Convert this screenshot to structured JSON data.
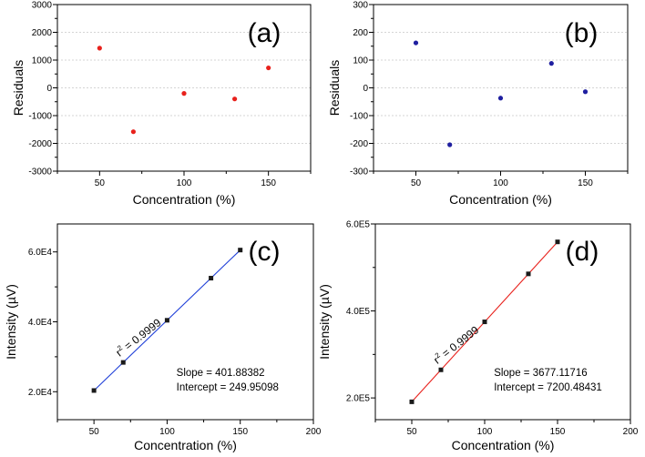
{
  "chart_data": [
    {
      "id": "a",
      "type": "scatter",
      "panel_label": "(a)",
      "xlabel": "Concentration (%)",
      "ylabel": "Residuals",
      "xlim": [
        25,
        175
      ],
      "ylim": [
        -3000,
        3000
      ],
      "xticks": [
        50,
        100,
        150
      ],
      "xtick_labels": [
        "50",
        "100",
        "150"
      ],
      "yticks": [
        -3000,
        -2000,
        -1000,
        0,
        1000,
        2000,
        3000
      ],
      "ytick_labels": [
        "-3000",
        "-2000",
        "-1000",
        "0",
        "1000",
        "2000",
        "3000"
      ],
      "grid": "horizontal-dotted",
      "marker_color": "#e8211c",
      "marker": "circle",
      "x": [
        50,
        70,
        100,
        130,
        150
      ],
      "y": [
        1430,
        -1580,
        -200,
        -400,
        720
      ]
    },
    {
      "id": "b",
      "type": "scatter",
      "panel_label": "(b)",
      "xlabel": "Concentration (%)",
      "ylabel": "Residuals",
      "xlim": [
        25,
        175
      ],
      "ylim": [
        -300,
        300
      ],
      "xticks": [
        50,
        100,
        150
      ],
      "xtick_labels": [
        "50",
        "100",
        "150"
      ],
      "yticks": [
        -300,
        -200,
        -100,
        0,
        100,
        200,
        300
      ],
      "ytick_labels": [
        "-300",
        "-200",
        "-100",
        "0",
        "100",
        "200",
        "300"
      ],
      "grid": "horizontal-dotted",
      "marker_color": "#1f1fa0",
      "marker": "circle",
      "x": [
        50,
        70,
        100,
        130,
        150
      ],
      "y": [
        162,
        -205,
        -37,
        88,
        -14
      ]
    },
    {
      "id": "c",
      "type": "line",
      "panel_label": "(c)",
      "xlabel": "Concentration (%)",
      "ylabel": "Intensity (µV)",
      "xlim": [
        25,
        200
      ],
      "ylim": [
        12000,
        68000
      ],
      "xticks": [
        50,
        100,
        150,
        200
      ],
      "xtick_labels": [
        "50",
        "100",
        "150",
        "200"
      ],
      "yticks": [
        20000,
        40000,
        60000
      ],
      "ytick_labels": [
        "2.0E4",
        "4.0E4",
        "6.0E4"
      ],
      "grid": "none",
      "line_color": "#1f3fd8",
      "marker_color": "#1a1a1a",
      "marker": "square",
      "x": [
        50,
        70,
        100,
        130,
        150
      ],
      "y": [
        20344,
        28381,
        40438,
        52494,
        60531
      ],
      "fit": {
        "slope": 401.88382,
        "intercept": 249.95098
      },
      "annotations": {
        "r2_prefix": "r",
        "r2_sup": "2",
        "r2_value": " = 0.9999",
        "slope_text": "Slope = 401.88382",
        "intercept_text": "Intercept = 249.95098"
      }
    },
    {
      "id": "d",
      "type": "line",
      "panel_label": "(d)",
      "xlabel": "Concentration (%)",
      "ylabel": "Intensity (µV)",
      "xlim": [
        25,
        200
      ],
      "ylim": [
        150000,
        600000
      ],
      "xticks": [
        50,
        100,
        150,
        200
      ],
      "xtick_labels": [
        "50",
        "100",
        "150",
        "200"
      ],
      "yticks": [
        200000,
        400000,
        600000
      ],
      "ytick_labels": [
        "2.0E5",
        "4.0E5",
        "6.0E5"
      ],
      "grid": "none",
      "line_color": "#e8211c",
      "marker_color": "#1a1a1a",
      "marker": "square",
      "x": [
        50,
        70,
        100,
        130,
        150
      ],
      "y": [
        191056,
        264598,
        374912,
        485225,
        558767
      ],
      "fit": {
        "slope": 3677.11716,
        "intercept": 7200.48431
      },
      "annotations": {
        "r2_prefix": "r",
        "r2_sup": "2",
        "r2_value": " = 0.9999",
        "slope_text": "Slope = 3677.11716",
        "intercept_text": "Intercept = 7200.48431"
      }
    }
  ]
}
